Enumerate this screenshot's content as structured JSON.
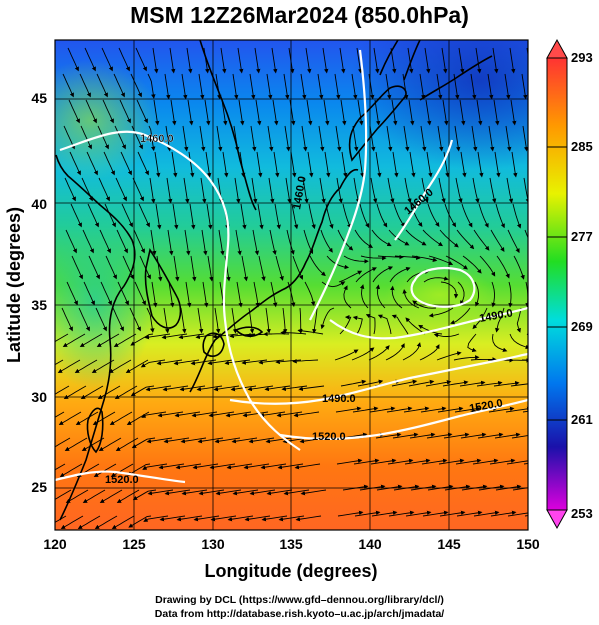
{
  "title": "MSM 12Z26Mar2024 (850.0hPa)",
  "x_axis": {
    "label": "Longitude (degrees)",
    "ticks": [
      "120",
      "125",
      "130",
      "135",
      "140",
      "145",
      "150"
    ]
  },
  "y_axis": {
    "label": "Latitude  (degrees)",
    "ticks": [
      "25",
      "30",
      "35",
      "40",
      "45"
    ]
  },
  "colorbar": {
    "ticks": [
      "293",
      "285",
      "277",
      "269",
      "261",
      "253"
    ],
    "colors": [
      "#ff3333",
      "#ff9900",
      "#e8f200",
      "#22dd22",
      "#00dddd",
      "#0077ee",
      "#1a11aa",
      "#dd00dd"
    ]
  },
  "contour_labels": [
    "1460.0",
    "1460.0",
    "1460.0",
    "1490.0",
    "1490.0",
    "1520.0",
    "1520.0",
    "1520.0"
  ],
  "credits": [
    "Drawing by DCL (https://www.gfd–dennou.org/library/dcl/)",
    "Data from http://database.rish.kyoto–u.ac.jp/arch/jmadata/"
  ]
}
